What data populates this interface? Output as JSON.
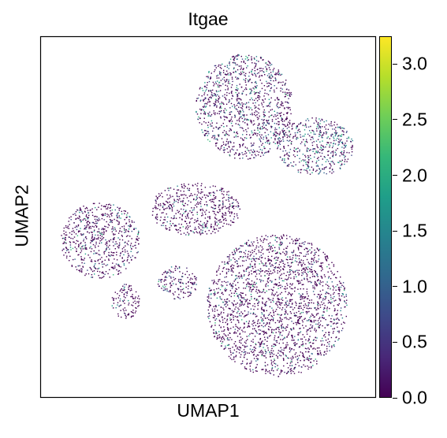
{
  "chart_data": {
    "type": "scatter",
    "title": "Itgae",
    "xlabel": "UMAP1",
    "ylabel": "UMAP2",
    "xticks": [],
    "yticks": [],
    "grid": false,
    "legend": "colorbar-right",
    "colormap": "viridis",
    "colorbar": {
      "min": 0.0,
      "max": 3.25,
      "ticks": [
        "0.0",
        "0.5",
        "1.0",
        "1.5",
        "2.0",
        "2.5",
        "3.0"
      ],
      "colors": [
        "#440154",
        "#482878",
        "#3e4989",
        "#31688e",
        "#26828e",
        "#1f9e89",
        "#35b779",
        "#6ece58",
        "#b5de2b",
        "#fde725"
      ]
    },
    "point_color_default": "#440154",
    "clusters": [
      {
        "x": [
          -1.3,
          4.8
        ],
        "y": [
          2.2,
          9.8
        ],
        "mean": 0.35
      },
      {
        "x": [
          3.8,
          8.6
        ],
        "y": [
          1.0,
          5.2
        ],
        "mean": 0.5
      },
      {
        "x": [
          -9.8,
          -4.8
        ],
        "y": [
          -6.4,
          -0.9
        ],
        "mean": 0.25
      },
      {
        "x": [
          -6.6,
          -4.8
        ],
        "y": [
          -9.3,
          -6.8
        ],
        "mean": 0.15
      },
      {
        "x": [
          -3.7,
          -1.2
        ],
        "y": [
          -7.9,
          -5.5
        ],
        "mean": 0.3
      },
      {
        "x": [
          -4.2,
          1.5
        ],
        "y": [
          -3.3,
          0.5
        ],
        "mean": 0.15
      },
      {
        "x": [
          -0.6,
          8.2
        ],
        "y": [
          -13.5,
          -3.2
        ],
        "mean": 0.2
      }
    ]
  }
}
